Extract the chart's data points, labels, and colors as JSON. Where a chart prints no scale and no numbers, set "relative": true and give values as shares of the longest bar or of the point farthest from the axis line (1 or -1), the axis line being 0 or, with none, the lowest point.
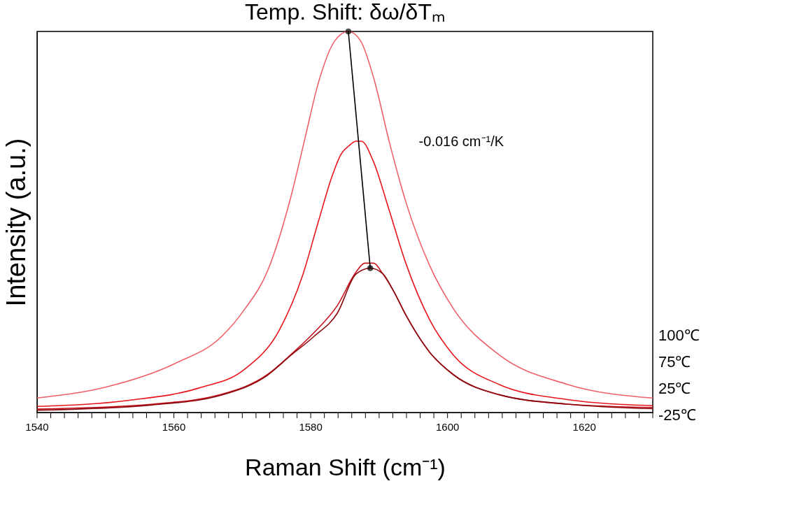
{
  "chart_data": {
    "type": "line",
    "title": "Temp. Shift: δω/δTₘ",
    "xlabel": "Raman Shift (cm⁻¹)",
    "ylabel": "Intensity (a.u.)",
    "relative": true,
    "grid": false,
    "legend": false,
    "tick_labels": "x",
    "line_style": "solid",
    "annotations": [
      "-0.016 cm⁻¹/K"
    ],
    "xlim": [
      1540,
      1630
    ],
    "xticks": [
      1540,
      {
        "value": 1542,
        "label": null
      },
      {
        "value": 1544,
        "label": null
      },
      {
        "value": 1546,
        "label": null
      },
      {
        "value": 1548,
        "label": null
      },
      {
        "value": 1550,
        "label": null
      },
      {
        "value": 1552,
        "label": null
      },
      {
        "value": 1554,
        "label": null
      },
      {
        "value": 1556,
        "label": null
      },
      {
        "value": 1558,
        "label": null
      },
      1560,
      {
        "value": 1562,
        "label": null
      },
      {
        "value": 1564,
        "label": null
      },
      {
        "value": 1566,
        "label": null
      },
      {
        "value": 1568,
        "label": null
      },
      {
        "value": 1570,
        "label": null
      },
      {
        "value": 1572,
        "label": null
      },
      {
        "value": 1574,
        "label": null
      },
      {
        "value": 1576,
        "label": null
      },
      {
        "value": 1578,
        "label": null
      },
      1580,
      {
        "value": 1582,
        "label": null
      },
      {
        "value": 1584,
        "label": null
      },
      {
        "value": 1586,
        "label": null
      },
      {
        "value": 1588,
        "label": null
      },
      {
        "value": 1590,
        "label": null
      },
      {
        "value": 1592,
        "label": null
      },
      {
        "value": 1594,
        "label": null
      },
      {
        "value": 1596,
        "label": null
      },
      {
        "value": 1598,
        "label": null
      },
      1600,
      {
        "value": 1602,
        "label": null
      },
      {
        "value": 1604,
        "label": null
      },
      {
        "value": 1606,
        "label": null
      },
      {
        "value": 1608,
        "label": null
      },
      {
        "value": 1610,
        "label": null
      },
      {
        "value": 1612,
        "label": null
      },
      {
        "value": 1614,
        "label": null
      },
      {
        "value": 1616,
        "label": null
      },
      {
        "value": 1618,
        "label": null
      },
      1620,
      {
        "value": 1622,
        "label": null
      },
      {
        "value": 1624,
        "label": null
      },
      {
        "value": 1626,
        "label": null
      },
      {
        "value": 1628,
        "label": null
      },
      {
        "value": 1630,
        "label": null
      }
    ],
    "series": [
      {
        "name": "100℃",
        "color": "#f0606a",
        "x": [
          1540,
          1550.1,
          1560.2,
          1567.0,
          1570.3,
          1573.7,
          1577.1,
          1579.1,
          1581.1,
          1583.5,
          1585.5,
          1587.3,
          1589.2,
          1591.6,
          1593.9,
          1597.4,
          1600.8,
          1607.5,
          1617.5,
          1630
        ],
        "values": [
          0.038,
          0.067,
          0.129,
          0.2,
          0.27,
          0.372,
          0.566,
          0.715,
          0.864,
          0.975,
          1.0,
          0.975,
          0.878,
          0.702,
          0.553,
          0.385,
          0.274,
          0.152,
          0.074,
          0.038
        ]
      },
      {
        "name": "75℃",
        "color": "#e8141c",
        "x": [
          1540,
          1553.5,
          1563.6,
          1570.3,
          1575.4,
          1578.8,
          1581.1,
          1583.1,
          1584.4,
          1585.6,
          1586.6,
          1587.4,
          1589.2,
          1591.3,
          1593.9,
          1597.4,
          1600.8,
          1607.5,
          1617.5,
          1630
        ],
        "values": [
          0.016,
          0.032,
          0.064,
          0.113,
          0.216,
          0.359,
          0.5,
          0.619,
          0.677,
          0.7,
          0.712,
          0.712,
          0.657,
          0.541,
          0.392,
          0.243,
          0.152,
          0.074,
          0.034,
          0.018
        ]
      },
      {
        "name": "25℃",
        "color": "#c8101a",
        "x": [
          1540,
          1556.9,
          1567.0,
          1573.7,
          1577.1,
          1580.5,
          1583.9,
          1586.6,
          1587.9,
          1589.2,
          1590.5,
          1592.1,
          1593.9,
          1597.4,
          1600.8,
          1607.5,
          1617.5,
          1630
        ],
        "values": [
          0.009,
          0.022,
          0.048,
          0.1,
          0.152,
          0.21,
          0.281,
          0.368,
          0.392,
          0.392,
          0.365,
          0.319,
          0.256,
          0.158,
          0.1,
          0.047,
          0.022,
          0.013
        ]
      },
      {
        "name": "-25℃",
        "color": "#8b0a10",
        "x": [
          1540,
          1556.9,
          1567.0,
          1573.7,
          1577.1,
          1580.5,
          1583.9,
          1586.6,
          1588.7,
          1590.5,
          1592.1,
          1593.9,
          1597.4,
          1600.8,
          1607.5,
          1617.5,
          1630
        ],
        "values": [
          0.006,
          0.02,
          0.046,
          0.098,
          0.15,
          0.2,
          0.261,
          0.363,
          0.379,
          0.365,
          0.319,
          0.256,
          0.158,
          0.1,
          0.047,
          0.022,
          0.01
        ]
      },
      {
        "type": "line",
        "color": "#000000",
        "marker": "circle",
        "x": [
          1585.5,
          1588.7
        ],
        "values": [
          1.0,
          0.379
        ]
      }
    ]
  }
}
